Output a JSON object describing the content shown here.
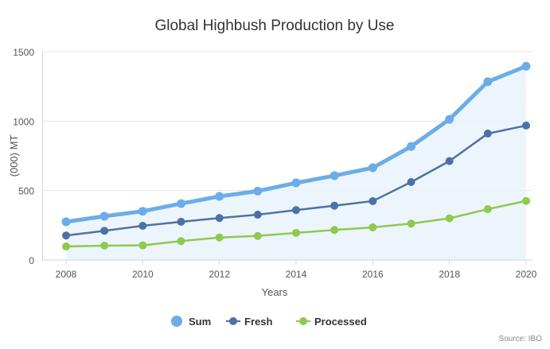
{
  "chart_data": {
    "type": "line",
    "title": "Global Highbush Production by Use",
    "xlabel": "Years",
    "ylabel": "(000) MT",
    "ylim": [
      0,
      1500
    ],
    "yticks": [
      0,
      500,
      1000,
      1500
    ],
    "xticks": [
      2008,
      2010,
      2012,
      2014,
      2016,
      2018,
      2020
    ],
    "grid": true,
    "legend_position": "bottom",
    "x": [
      2008,
      2009,
      2010,
      2011,
      2012,
      2013,
      2014,
      2015,
      2016,
      2017,
      2018,
      2019,
      2020
    ],
    "series": [
      {
        "name": "Sum",
        "color": "#6aade8",
        "area": true,
        "values": [
          275,
          315,
          351,
          406,
          458,
          496,
          555,
          607,
          664,
          817,
          1013,
          1284,
          1395
        ]
      },
      {
        "name": "Fresh",
        "color": "#4c72a5",
        "values": [
          176,
          210,
          246,
          275,
          302,
          326,
          359,
          391,
          424,
          561,
          712,
          910,
          968
        ]
      },
      {
        "name": "Processed",
        "color": "#8fc94e",
        "values": [
          97,
          103,
          105,
          136,
          162,
          173,
          195,
          216,
          235,
          262,
          300,
          366,
          425
        ]
      }
    ],
    "source": "Source: IBO"
  }
}
